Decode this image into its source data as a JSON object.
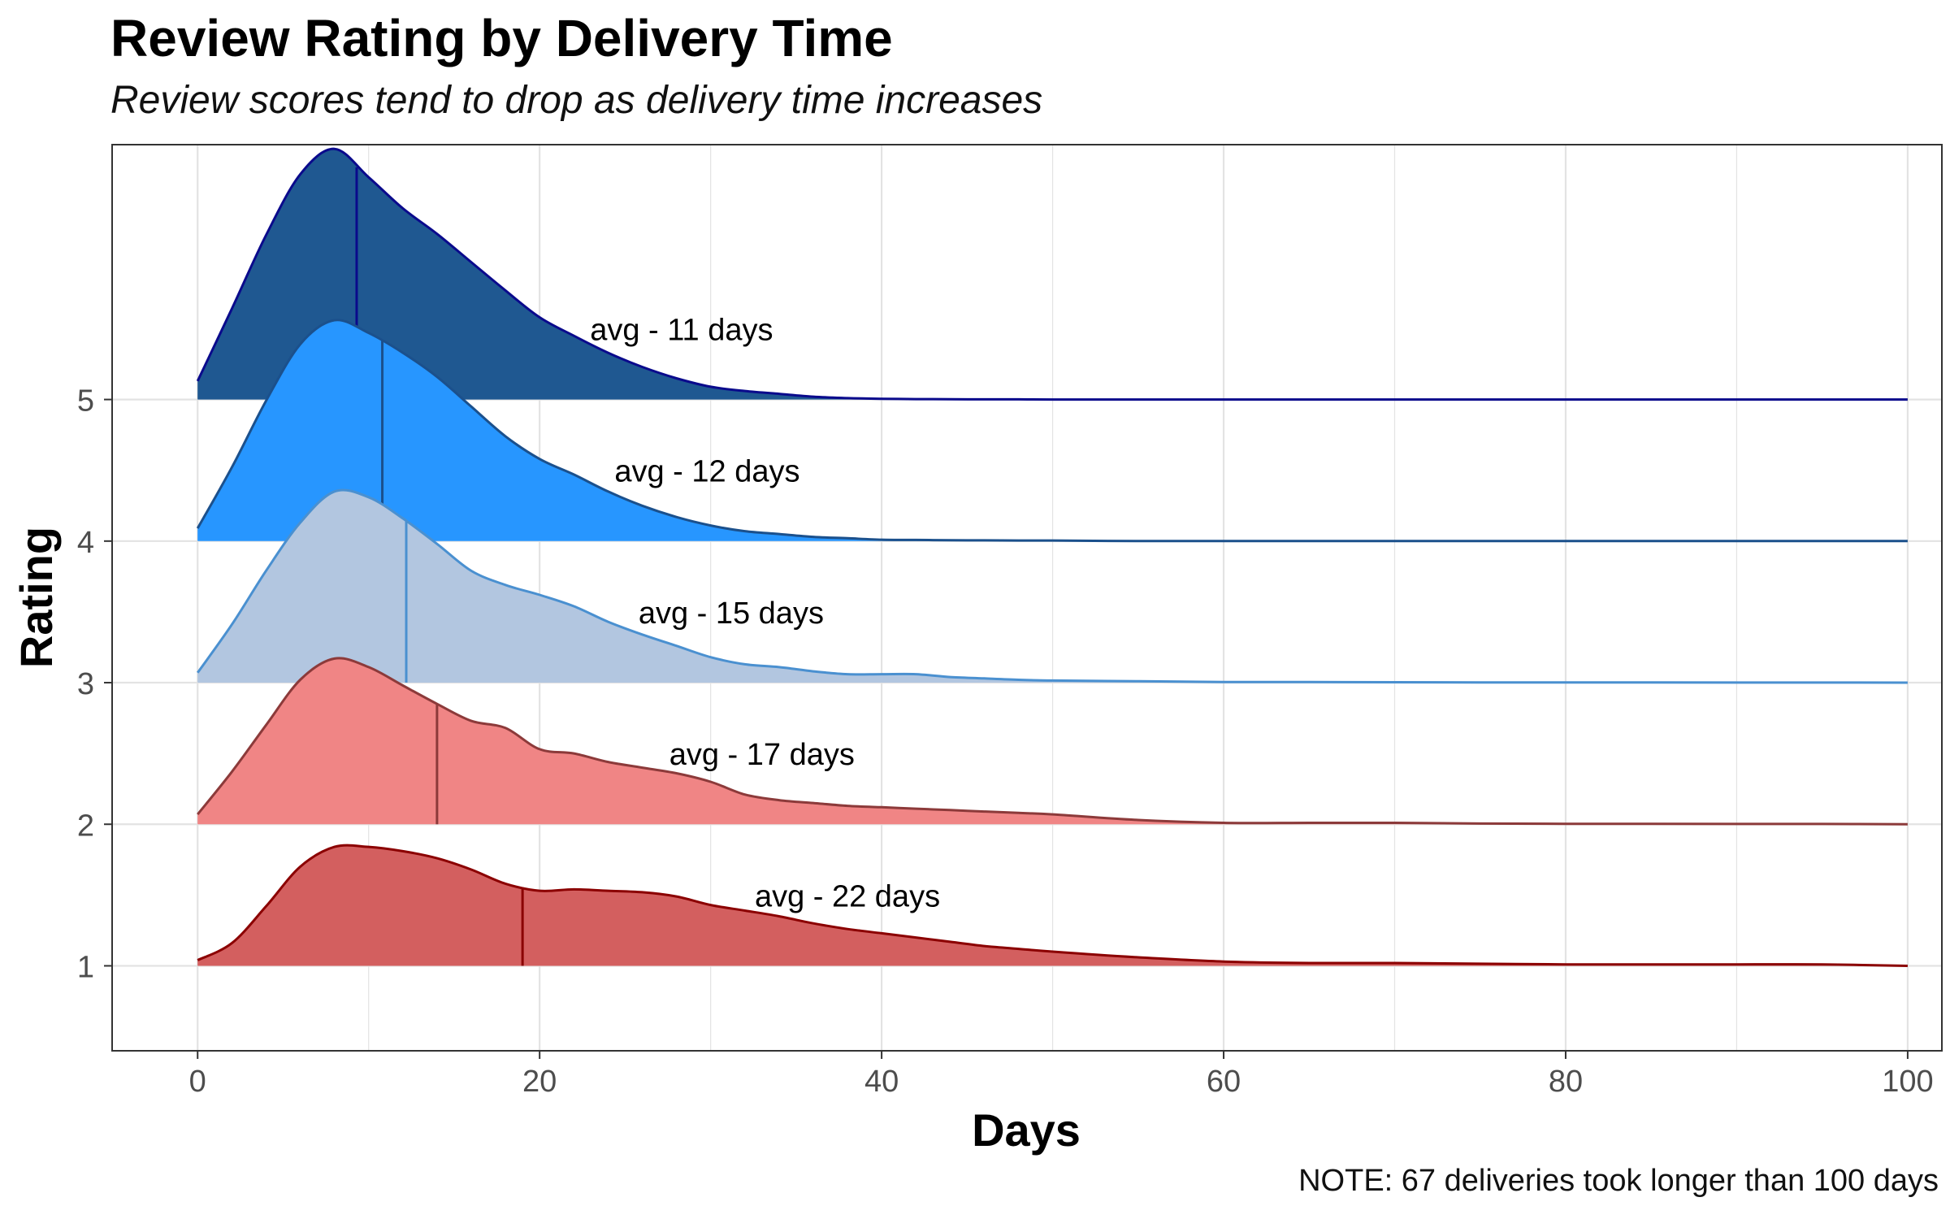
{
  "chart_data": {
    "type": "ridgeline",
    "title": "Review Rating by Delivery Time",
    "subtitle": "Review scores tend to drop as delivery time increases",
    "xlabel": "Days",
    "ylabel": "Rating",
    "note": "NOTE: 67 deliveries took longer than 100 days",
    "xlim": [
      -5,
      102
    ],
    "ylim": [
      0.4,
      6.8
    ],
    "x_ticks": [
      0,
      20,
      40,
      60,
      80,
      100
    ],
    "y_ticks": [
      1,
      2,
      3,
      4,
      5
    ],
    "grid": true,
    "x": [
      0,
      2,
      4,
      6,
      8,
      10,
      12,
      14,
      16,
      18,
      20,
      22,
      24,
      26,
      28,
      30,
      32,
      34,
      36,
      38,
      40,
      42,
      44,
      46,
      48,
      50,
      55,
      60,
      65,
      70,
      75,
      80,
      85,
      90,
      95,
      100
    ],
    "series": [
      {
        "rating": 5,
        "avg_label": "avg - 11 days",
        "median_day": 9.3,
        "fill": "#1f5891",
        "stroke": "#0a0a8c",
        "marker": "#0a0a8c",
        "height": [
          0.13,
          0.64,
          1.16,
          1.59,
          1.77,
          1.57,
          1.35,
          1.17,
          0.97,
          0.77,
          0.58,
          0.45,
          0.33,
          0.23,
          0.15,
          0.09,
          0.06,
          0.04,
          0.02,
          0.01,
          0.005,
          0.003,
          0.002,
          0.001,
          0.001,
          0.0,
          0.0,
          0.0,
          0.0,
          0.0,
          0.0,
          0.0,
          0.0,
          0.0,
          0.0,
          0.0
        ]
      },
      {
        "rating": 4,
        "avg_label": "avg - 12 days",
        "median_day": 10.8,
        "fill": "#2796ff",
        "stroke": "#1b508c",
        "marker": "#1b508c",
        "height": [
          0.09,
          0.52,
          0.99,
          1.39,
          1.56,
          1.47,
          1.33,
          1.16,
          0.95,
          0.74,
          0.58,
          0.47,
          0.35,
          0.25,
          0.17,
          0.11,
          0.07,
          0.05,
          0.03,
          0.02,
          0.01,
          0.008,
          0.006,
          0.005,
          0.004,
          0.004,
          0.0,
          0.0,
          0.0,
          0.0,
          0.0,
          0.0,
          0.0,
          0.0,
          0.0,
          0.0
        ]
      },
      {
        "rating": 3,
        "avg_label": "avg - 15 days",
        "median_day": 12.2,
        "fill": "#b2c6e0",
        "stroke": "#4a90d0",
        "marker": "#4a90d0",
        "height": [
          0.07,
          0.41,
          0.79,
          1.13,
          1.35,
          1.31,
          1.16,
          0.98,
          0.79,
          0.69,
          0.62,
          0.54,
          0.43,
          0.34,
          0.26,
          0.18,
          0.13,
          0.11,
          0.08,
          0.06,
          0.06,
          0.06,
          0.04,
          0.03,
          0.02,
          0.015,
          0.01,
          0.005,
          0.004,
          0.003,
          0.002,
          0.002,
          0.002,
          0.001,
          0.001,
          0.0
        ]
      },
      {
        "rating": 2,
        "avg_label": "avg - 17 days",
        "median_day": 14.0,
        "fill": "#f08585",
        "stroke": "#8c3a3a",
        "marker": "#8c3a3a",
        "height": [
          0.07,
          0.37,
          0.7,
          1.02,
          1.17,
          1.11,
          0.98,
          0.85,
          0.73,
          0.68,
          0.53,
          0.5,
          0.44,
          0.4,
          0.36,
          0.3,
          0.21,
          0.17,
          0.15,
          0.13,
          0.12,
          0.11,
          0.1,
          0.09,
          0.08,
          0.07,
          0.03,
          0.01,
          0.01,
          0.01,
          0.005,
          0.003,
          0.003,
          0.002,
          0.002,
          0.0
        ]
      },
      {
        "rating": 1,
        "avg_label": "avg - 22 days",
        "median_day": 19.0,
        "fill": "#d35f5f",
        "stroke": "#8b0000",
        "marker": "#8b0000",
        "height": [
          0.04,
          0.16,
          0.42,
          0.7,
          0.84,
          0.84,
          0.81,
          0.76,
          0.68,
          0.58,
          0.53,
          0.54,
          0.53,
          0.52,
          0.49,
          0.43,
          0.39,
          0.35,
          0.3,
          0.26,
          0.23,
          0.2,
          0.17,
          0.14,
          0.12,
          0.1,
          0.06,
          0.03,
          0.02,
          0.02,
          0.015,
          0.01,
          0.01,
          0.01,
          0.01,
          0.0
        ]
      }
    ]
  }
}
